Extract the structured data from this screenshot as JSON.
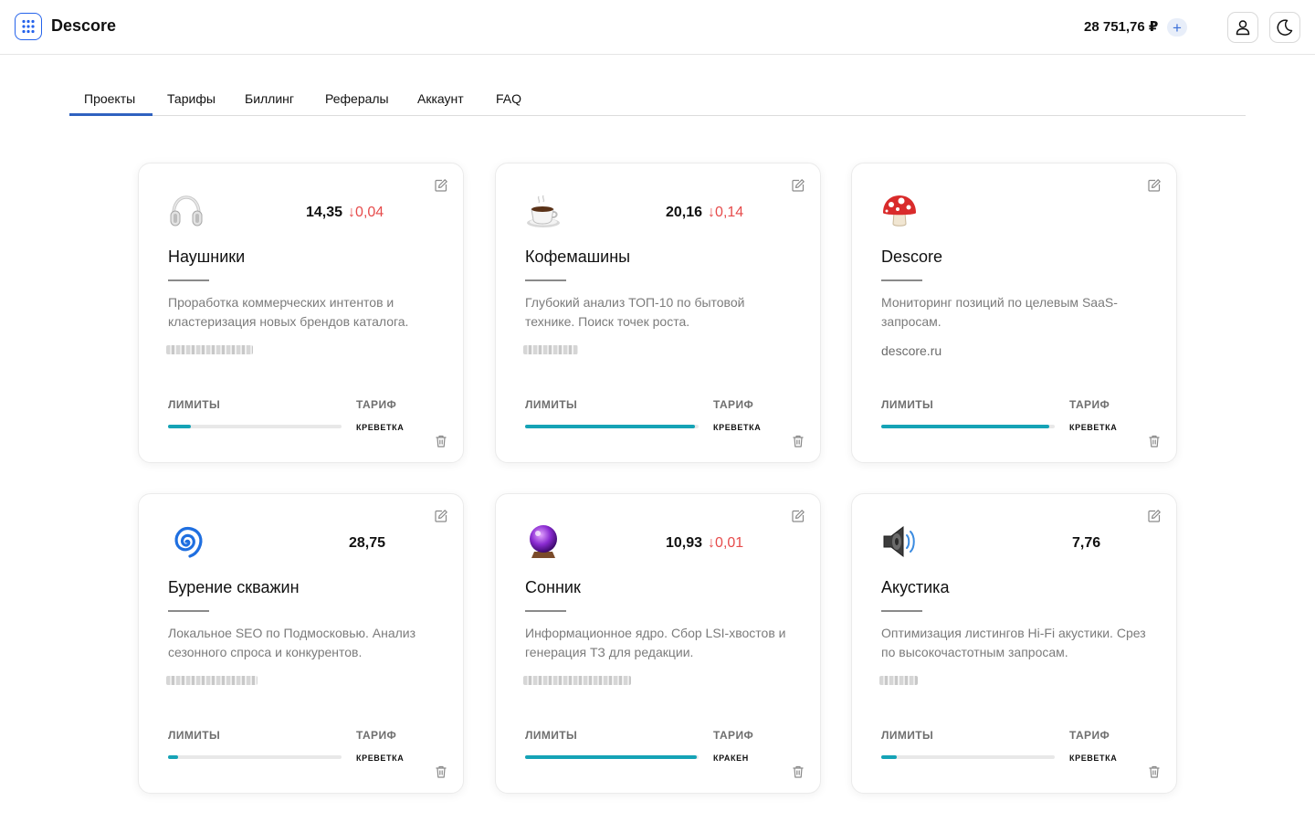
{
  "header": {
    "app_title": "Descore",
    "balance": "28 751,76 ₽",
    "add_label": "+"
  },
  "tabs": [
    {
      "label": "Проекты",
      "active": true
    },
    {
      "label": "Тарифы"
    },
    {
      "label": "Биллинг"
    },
    {
      "label": "Рефералы"
    },
    {
      "label": "Аккаунт"
    },
    {
      "label": "FAQ"
    }
  ],
  "labels": {
    "limits": "ЛИМИТЫ",
    "tariff": "ТАРИФ"
  },
  "colors": {
    "accent": "#2f62c0",
    "progress": "#15a3b6",
    "negative": "#e64b4b"
  },
  "projects": [
    {
      "icon": "headphones-icon",
      "metric": "14,35",
      "delta": "↓0,04",
      "name": "Наушники",
      "description": "Проработка коммерческих интентов и кластеризация новых брендов каталога.",
      "domain": "",
      "domain_blurred": true,
      "limit_fraction": 0.13,
      "tariff": "КРЕВЕТКА"
    },
    {
      "icon": "coffee-icon",
      "metric": "20,16",
      "delta": "↓0,14",
      "name": "Кофемашины",
      "description": "Глубокий анализ ТОП-10 по бытовой технике. Поиск точек роста.",
      "domain": "",
      "domain_blurred": true,
      "limit_fraction": 0.98,
      "tariff": "КРЕВЕТКА"
    },
    {
      "icon": "mushroom-icon",
      "metric": "",
      "delta": "",
      "name": "Descore",
      "description": "Мониторинг позиций по целевым SaaS-запросам.",
      "domain": "descore.ru",
      "domain_blurred": false,
      "limit_fraction": 0.97,
      "tariff": "КРЕВЕТКА"
    },
    {
      "icon": "cyclone-icon",
      "metric": "28,75",
      "delta": "",
      "name": "Бурение скважин",
      "description": "Локальное SEO по Подмосковью. Анализ сезонного спроса и конкурентов.",
      "domain": "",
      "domain_blurred": true,
      "limit_fraction": 0.06,
      "tariff": "КРЕВЕТКА"
    },
    {
      "icon": "crystal-ball-icon",
      "metric": "10,93",
      "delta": "↓0,01",
      "name": "Сонник",
      "description": "Информационное ядро. Сбор LSI-хвостов и генерация ТЗ для редакции.",
      "domain": "",
      "domain_blurred": true,
      "limit_fraction": 0.99,
      "tariff": "КРАКЕН"
    },
    {
      "icon": "speaker-icon",
      "metric": "7,76",
      "delta": "",
      "name": "Акустика",
      "description": "Оптимизация листингов Hi-Fi акустики. Срез по высокочастотным запросам.",
      "domain": "",
      "domain_blurred": true,
      "limit_fraction": 0.09,
      "tariff": "КРЕВЕТКА"
    }
  ]
}
